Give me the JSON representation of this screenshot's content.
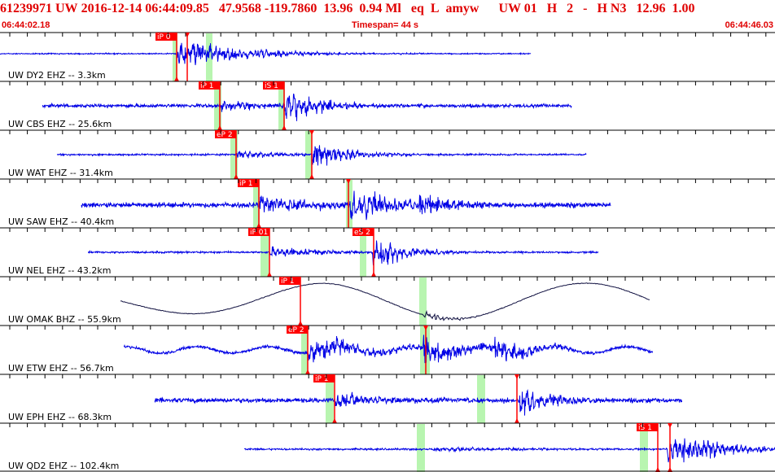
{
  "header": {
    "event_id": "61239971",
    "network": "UW",
    "origin_date": "2016-12-14",
    "origin_time": "06:44:09.85",
    "latitude": "47.9568",
    "longitude": "-119.7860",
    "depth": "13.96",
    "magnitude": "0.94",
    "mag_type": "Ml",
    "event_type": "eq",
    "review_flag": "L",
    "analyst": "amyw",
    "solution": "UW 01",
    "quality": "H",
    "count_a": "2",
    "dash": "-",
    "model": "H N3",
    "value_a": "12.96",
    "value_b": "1.00"
  },
  "timebar": {
    "start": "06:44:02.18",
    "span": "Timespan=  44 s",
    "end": "06:44:46.03"
  },
  "colors": {
    "header_red": "#e00000",
    "trace_blue": "#0000e6",
    "trace_dark": "#101040",
    "pick_red": "#ff0000",
    "window_green": "#b8f5b0"
  },
  "traces": [
    {
      "label": "UW DY2 EHZ -- 3.3km",
      "picks": [
        {
          "label": "iP 0"
        },
        {
          "label": ""
        }
      ]
    },
    {
      "label": "UW CBS EHZ -- 25.6km",
      "picks": [
        {
          "label": "iP 1"
        },
        {
          "label": "iS 1"
        }
      ]
    },
    {
      "label": "UW WAT EHZ -- 31.4km",
      "picks": [
        {
          "label": "eP 2"
        },
        {
          "label": ""
        }
      ]
    },
    {
      "label": "UW SAW EHZ -- 40.4km",
      "picks": [
        {
          "label": "iP 1"
        }
      ]
    },
    {
      "label": "UW NEL EHZ -- 43.2km",
      "picks": [
        {
          "label": "iP 01"
        },
        {
          "label": "eS 2"
        }
      ]
    },
    {
      "label": "UW OMAK BHZ -- 55.9km",
      "picks": [
        {
          "label": "iP 1"
        }
      ]
    },
    {
      "label": "UW ETW EHZ -- 56.7km",
      "picks": [
        {
          "label": "eP 2"
        }
      ]
    },
    {
      "label": "UW EPH EHZ -- 68.3km",
      "picks": [
        {
          "label": "iP 1"
        },
        {
          "label": ""
        }
      ]
    },
    {
      "label": "UW QD2 EHZ -- 102.4km",
      "picks": [
        {
          "label": "iS 1"
        }
      ]
    }
  ]
}
